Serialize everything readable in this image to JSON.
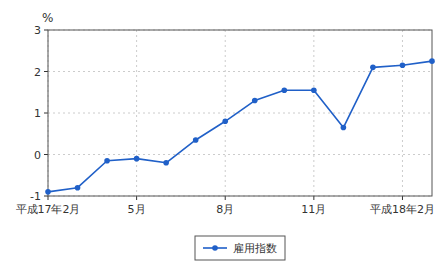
{
  "chart_data": {
    "type": "line",
    "y_label": "%",
    "categories": [
      "平成17年2月",
      null,
      null,
      "5月",
      null,
      null,
      "8月",
      null,
      null,
      "11月",
      null,
      null,
      "平成18年2月",
      null
    ],
    "series": [
      {
        "name": "雇用指数",
        "color": "#2060c8",
        "marker": "circle",
        "line_style": "solid",
        "values": [
          -0.9,
          -0.8,
          -0.15,
          -0.1,
          -0.2,
          0.35,
          0.8,
          1.3,
          1.55,
          1.55,
          0.65,
          2.1,
          2.15,
          2.25
        ]
      }
    ],
    "ylim": [
      -1.0,
      3.0
    ],
    "yticks": [
      -1,
      0,
      1,
      2,
      3
    ],
    "grid": true,
    "legend": "bottom"
  }
}
